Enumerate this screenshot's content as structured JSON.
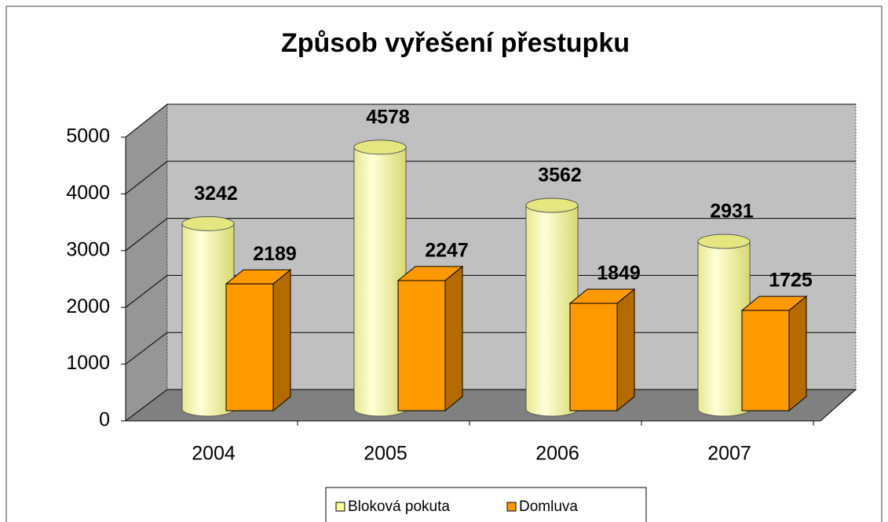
{
  "chart_data": {
    "type": "bar3d",
    "title": "Způsob vyřešení přestupku",
    "categories": [
      "2004",
      "2005",
      "2006",
      "2007"
    ],
    "series": [
      {
        "name": "Bloková pokuta",
        "color": "#ffff99",
        "shape": "cylinder",
        "values": [
          3242,
          4578,
          3562,
          2931
        ]
      },
      {
        "name": "Domluva",
        "color": "#ff9900",
        "shape": "box",
        "values": [
          2189,
          2247,
          1849,
          1725
        ]
      }
    ],
    "ylim": [
      0,
      5000
    ],
    "yticks": [
      0,
      1000,
      2000,
      3000,
      4000,
      5000
    ],
    "grid": true,
    "legend": "bottom"
  }
}
